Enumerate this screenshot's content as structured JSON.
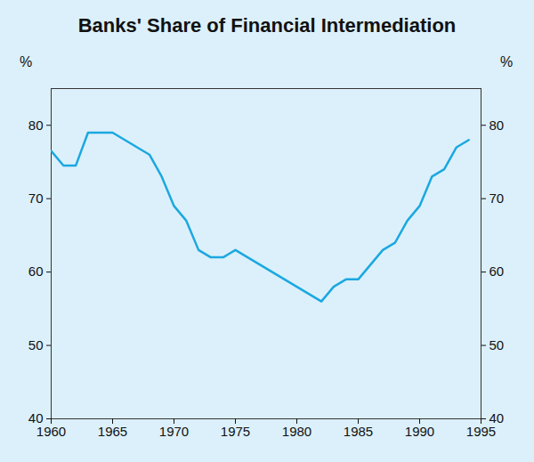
{
  "chart_data": {
    "type": "line",
    "title": "Banks' Share of Financial Intermediation",
    "y_label": "%",
    "x": [
      1960,
      1961,
      1962,
      1963,
      1964,
      1965,
      1968,
      1969,
      1970,
      1971,
      1972,
      1973,
      1974,
      1975,
      1982,
      1983,
      1984,
      1985,
      1986,
      1987,
      1988,
      1989,
      1990,
      1991,
      1992,
      1993,
      1994
    ],
    "values": [
      76.5,
      74.5,
      74.5,
      79,
      79,
      79,
      76,
      73,
      69,
      67,
      63,
      62,
      62,
      63,
      56,
      58,
      59,
      59,
      61,
      63,
      64,
      67,
      69,
      73,
      74,
      77,
      78
    ],
    "color": "#1ba8e0",
    "xlim": [
      1960,
      1995
    ],
    "xticks": [
      1960,
      1965,
      1970,
      1975,
      1980,
      1985,
      1990,
      1995
    ],
    "ylim": [
      40,
      85
    ],
    "yticks": [
      40,
      50,
      60,
      70,
      80
    ],
    "grid": false
  }
}
